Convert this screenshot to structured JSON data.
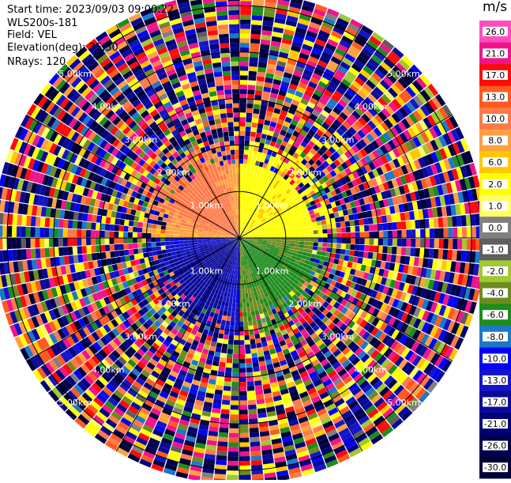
{
  "info": {
    "start_time": "Start time: 2023/09/03 09:00:22",
    "instrument": "WLS200s-181",
    "field": "Field: VEL",
    "elevation": "Elevation(deg): 35.30",
    "nrays": "NRays: 120"
  },
  "colorbar": {
    "unit": "m/s",
    "levels": [
      {
        "label": "26.0",
        "color": "#ff4dbd"
      },
      {
        "label": "21.0",
        "color": "#f0148a"
      },
      {
        "label": "17.0",
        "color": "#ff0a0a"
      },
      {
        "label": "13.0",
        "color": "#ff5a1e"
      },
      {
        "label": "10.0",
        "color": "#ff7a4a"
      },
      {
        "label": "8.0",
        "color": "#ffa040"
      },
      {
        "label": "6.0",
        "color": "#ffc800"
      },
      {
        "label": "2.0",
        "color": "#ffff00"
      },
      {
        "label": "1.0",
        "color": "#ffff66"
      },
      {
        "label": "0.0",
        "color": "#808080"
      },
      {
        "label": "-1.0",
        "color": "#5e5e5e"
      },
      {
        "label": "-2.0",
        "color": "#a0c832"
      },
      {
        "label": "-4.0",
        "color": "#6e8c1e"
      },
      {
        "label": "-6.0",
        "color": "#1e8c1e"
      },
      {
        "label": "-8.0",
        "color": "#1e78c8"
      },
      {
        "label": "-10.0",
        "color": "#0000ff"
      },
      {
        "label": "-13.0",
        "color": "#1414c8"
      },
      {
        "label": "-17.0",
        "color": "#0a0a9a"
      },
      {
        "label": "-21.0",
        "color": "#000078"
      },
      {
        "label": "-26.0",
        "color": "#00004d"
      },
      {
        "label": "-30.0",
        "color": "#00003a"
      }
    ]
  },
  "chart_data": {
    "type": "heatmap",
    "projection": "polar-ppi",
    "field": "VEL",
    "units": "m/s",
    "elevation_deg": 35.3,
    "n_rays": 120,
    "range_rings_km": [
      1.0,
      2.0,
      3.0,
      4.0,
      5.0
    ],
    "ring_labels": [
      "1.00km",
      "2.00km",
      "3.00km",
      "4.00km",
      "5.00km"
    ],
    "max_range_km": 5.3,
    "value_range": [
      -30.0,
      26.0
    ],
    "coherent_region_km": 1.7,
    "mean_field_note": "northeast sector ~+2 to +8 m/s, northwest ~+6 to +13 m/s, southwest ~-8 to -21 m/s, southeast ~-2 to -6 m/s; noisy beyond ~2 km",
    "grid": true
  }
}
